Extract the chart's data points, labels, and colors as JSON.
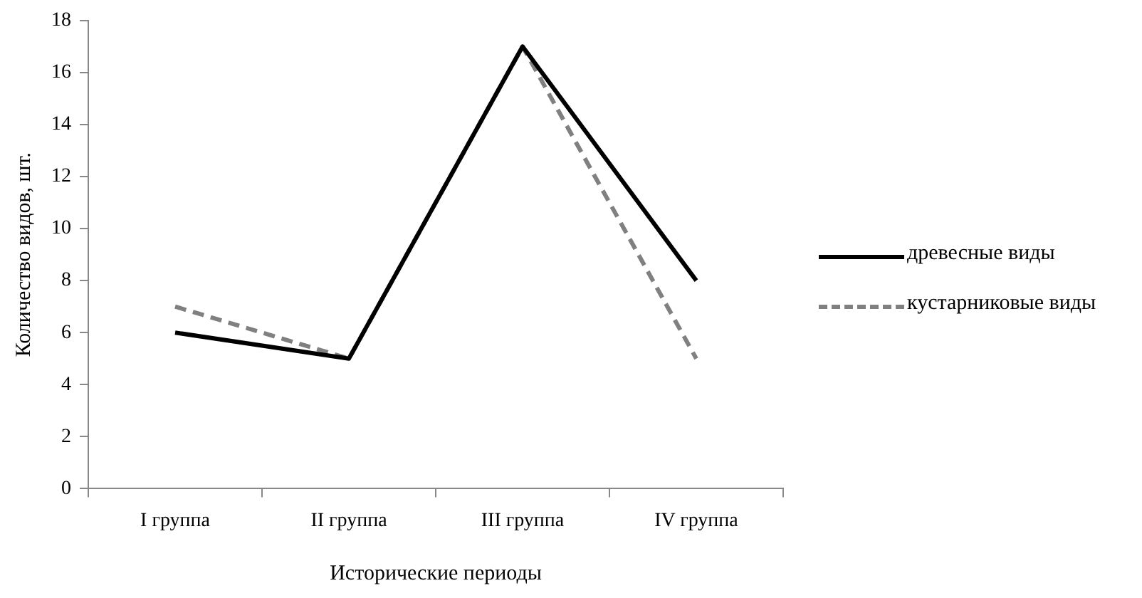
{
  "chart_data": {
    "type": "line",
    "xlabel": "Исторические периоды",
    "ylabel": "Количество видов, шт.",
    "categories": [
      "I группа",
      "II группа",
      "III группа",
      "IV группа"
    ],
    "series": [
      {
        "name": "древесные виды",
        "color": "#000000",
        "line_style": "solid",
        "values": [
          6,
          5,
          17,
          8
        ]
      },
      {
        "name": "кустарниковые виды",
        "color": "#808080",
        "line_style": "dashed",
        "values": [
          7,
          5,
          17,
          5
        ]
      }
    ],
    "ylim": [
      0,
      18
    ],
    "yticks": [
      0,
      2,
      4,
      6,
      8,
      10,
      12,
      14,
      16,
      18
    ],
    "grid": false,
    "legend": "right",
    "marker": "none"
  }
}
